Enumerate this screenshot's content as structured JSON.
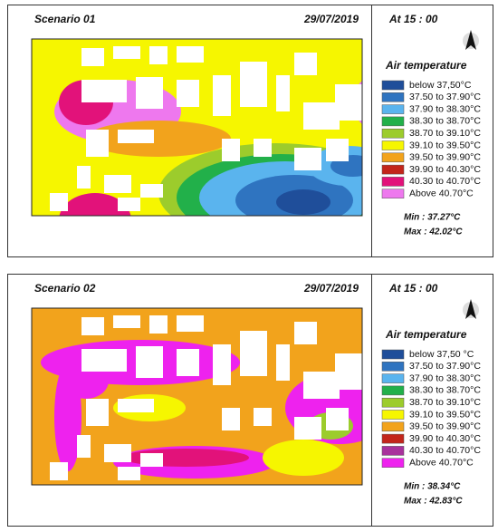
{
  "panels": [
    {
      "scenario": "Scenario 01",
      "date": "29/07/2019",
      "time": "At  15 : 00",
      "legend_title": "Air temperature",
      "legend": [
        {
          "label": "below   37,50°C",
          "color": "#1f4e9a"
        },
        {
          "label": "37.50 to 37.90°C",
          "color": "#2f74c0"
        },
        {
          "label": "37.90 to 38.30°C",
          "color": "#5ab4ee"
        },
        {
          "label": "38.30 to 38.70°C",
          "color": "#22b04a"
        },
        {
          "label": "38.70 to 39.10°C",
          "color": "#9ccc2c"
        },
        {
          "label": "39.10 to 39.50°C",
          "color": "#f6f600"
        },
        {
          "label": "39.50 to 39.90°C",
          "color": "#f2a31c"
        },
        {
          "label": "39.90 to 40.30°C",
          "color": "#c3261b"
        },
        {
          "label": "40.30 to 40.70°C",
          "color": "#e2127a"
        },
        {
          "label": "Above   40.70°C",
          "color": "#ee78ee"
        }
      ],
      "min": "Min : 37.27°C",
      "max": "Max : 42.02°C"
    },
    {
      "scenario": "Scenario 02",
      "date": "29/07/2019",
      "time": "At  15 : 00",
      "legend_title": "Air temperature",
      "legend": [
        {
          "label": "below   37,50 °C",
          "color": "#1f4e9a"
        },
        {
          "label": "37.50 to 37.90°C",
          "color": "#2f74c0"
        },
        {
          "label": "37.90 to 38.30°C",
          "color": "#5ab4ee"
        },
        {
          "label": "38.30 to 38.70°C",
          "color": "#22b04a"
        },
        {
          "label": "38.70 to 39.10°C",
          "color": "#9ccc2c"
        },
        {
          "label": "39.10 to 39.50°C",
          "color": "#f6f600"
        },
        {
          "label": "39.50 to 39.90°C",
          "color": "#f2a31c"
        },
        {
          "label": "39.90 to 40.30°C",
          "color": "#c3261b"
        },
        {
          "label": "40.30 to 40.70°C",
          "color": "#a8329c"
        },
        {
          "label": "Above   40.70°C",
          "color": "#ee22ee"
        }
      ],
      "min": "Min : 38.34°C",
      "max": "Max : 42.83°C"
    }
  ]
}
